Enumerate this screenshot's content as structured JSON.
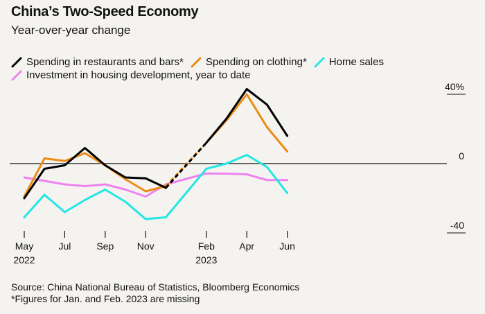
{
  "header": {
    "title": "China’s Two-Speed Economy",
    "subtitle": "Year-over-year change"
  },
  "footer": {
    "source": "Source: China National Bureau of Statistics, Bloomberg Economics",
    "note": "*Figures for Jan. and Feb. 2023 are missing"
  },
  "chart_data": {
    "type": "line",
    "title": "China’s Two-Speed Economy",
    "subtitle": "Year-over-year change",
    "xlabel": "",
    "ylabel": "",
    "ylim": [
      -40,
      40
    ],
    "yticks": [
      {
        "value": 40,
        "label": "40%"
      },
      {
        "value": 0,
        "label": "0"
      },
      {
        "value": -40,
        "label": "-40"
      }
    ],
    "x": [
      "2022-05",
      "2022-06",
      "2022-07",
      "2022-08",
      "2022-09",
      "2022-10",
      "2022-11",
      "2022-12",
      "2023-01",
      "2023-02",
      "2023-03",
      "2023-04",
      "2023-05",
      "2023-06"
    ],
    "xticks": [
      {
        "index": 0,
        "label": "May",
        "sublabel": "2022"
      },
      {
        "index": 2,
        "label": "Jul",
        "sublabel": ""
      },
      {
        "index": 4,
        "label": "Sep",
        "sublabel": ""
      },
      {
        "index": 6,
        "label": "Nov",
        "sublabel": ""
      },
      {
        "index": 9,
        "label": "Feb",
        "sublabel": "2023"
      },
      {
        "index": 11,
        "label": "Apr",
        "sublabel": ""
      },
      {
        "index": 13,
        "label": "Jun",
        "sublabel": ""
      }
    ],
    "gap_dashed": true,
    "series": [
      {
        "name": "Investment in housing development, year to date",
        "color": "#ee82ee",
        "values": [
          -8,
          -10,
          -12,
          -13,
          -12,
          -15,
          -19,
          -12,
          null,
          -5.7,
          -5.8,
          -6.2,
          -9.5,
          -9.5
        ],
        "dashed_segments": []
      },
      {
        "name": "Home sales",
        "color": "#22e6e6",
        "values": [
          -31,
          -18,
          -28,
          -21,
          -15,
          -22,
          -32,
          -31,
          null,
          -3,
          0,
          5,
          -2,
          -17
        ],
        "dashed_segments": []
      },
      {
        "name": "Spending on clothing*",
        "color": "#ec8c14",
        "values": [
          -19,
          3,
          1.5,
          6,
          -1,
          -9,
          -16,
          -13,
          null,
          12,
          25,
          40,
          21,
          7
        ],
        "dashed_segments": [
          [
            7,
            9
          ]
        ]
      },
      {
        "name": "Spending in restaurants and bars*",
        "color": "#000000",
        "values": [
          -20,
          -3,
          -1,
          9,
          -1,
          -8,
          -8.5,
          -14,
          null,
          12,
          26,
          43,
          34,
          16
        ],
        "dashed_segments": [
          [
            7,
            9
          ]
        ]
      }
    ],
    "legend": [
      {
        "name": "Spending in restaurants and bars*",
        "color": "#000000",
        "row": 1
      },
      {
        "name": "Spending on clothing*",
        "color": "#ec8c14",
        "row": 1
      },
      {
        "name": "Home sales",
        "color": "#22e6e6",
        "row": 1
      },
      {
        "name": "Investment in housing development, year to date",
        "color": "#ee82ee",
        "row": 2
      }
    ],
    "legend_position": "top-left"
  }
}
